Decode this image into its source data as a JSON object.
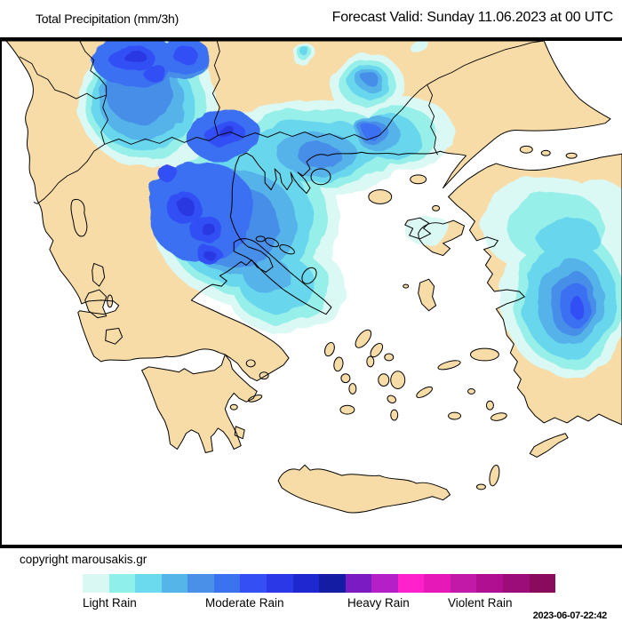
{
  "header": {
    "left_title": "Total Precipitation (mm/3h)",
    "right_title": "Forecast Valid:  Sunday 11.06.2023 at 00 UTC"
  },
  "footer": {
    "copyright": "copyright marousakis.gr",
    "timestamp": "2023-06-07-22:42"
  },
  "legend": {
    "labels": [
      "Light Rain",
      "Moderate Rain",
      "Heavy Rain",
      "Violent Rain"
    ],
    "colors": [
      "#d9f8f4",
      "#8ef0e9",
      "#6bd9ee",
      "#56b5e8",
      "#4a90e8",
      "#3b72f0",
      "#3450f5",
      "#2a38e8",
      "#1f28cf",
      "#141ca4",
      "#7a1cc2",
      "#b51fc8",
      "#ff22cc",
      "#e619b8",
      "#c219a8",
      "#b00f92",
      "#9c0d7a",
      "#8a0a5e"
    ]
  },
  "map": {
    "region": "Greece and the Aegean",
    "land_color": "#f7dca8",
    "sea_color": "#ffffff",
    "coastline_color": "#000000",
    "precip_levels": [
      "#daf8f4",
      "#96efe8",
      "#68d7ee",
      "#55b3e9",
      "#478ee9",
      "#3a6ff2",
      "#3350f5",
      "#2a38e2"
    ]
  }
}
